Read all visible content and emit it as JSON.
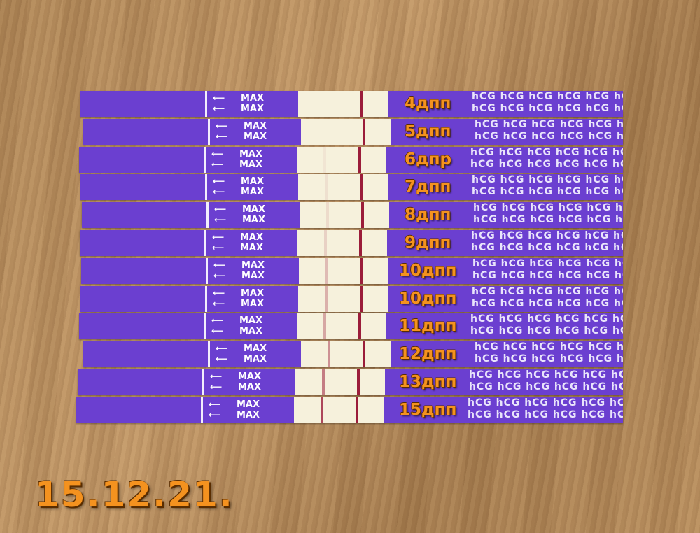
{
  "photo": {
    "date_caption": "15.12.21.",
    "strip_brand_text": "hCG",
    "strip_max_text": "MAX",
    "colors": {
      "strip": "#6b3fd0",
      "label": "#f4921f",
      "window": "#f6f1dc",
      "line": "#9b1d3a"
    },
    "strips": [
      {
        "label": "4дпп",
        "test_line_intensity": 0.0
      },
      {
        "label": "5дпп",
        "test_line_intensity": 0.0
      },
      {
        "label": "6дпр",
        "test_line_intensity": 0.05
      },
      {
        "label": "7дпп",
        "test_line_intensity": 0.08
      },
      {
        "label": "8дпп",
        "test_line_intensity": 0.1
      },
      {
        "label": "9дпп",
        "test_line_intensity": 0.15
      },
      {
        "label": "10дпп",
        "test_line_intensity": 0.25
      },
      {
        "label": "10дпп",
        "test_line_intensity": 0.3
      },
      {
        "label": "11дпп",
        "test_line_intensity": 0.35
      },
      {
        "label": "12дпп",
        "test_line_intensity": 0.45
      },
      {
        "label": "13дпп",
        "test_line_intensity": 0.55
      },
      {
        "label": "15дпп",
        "test_line_intensity": 0.8
      }
    ]
  }
}
